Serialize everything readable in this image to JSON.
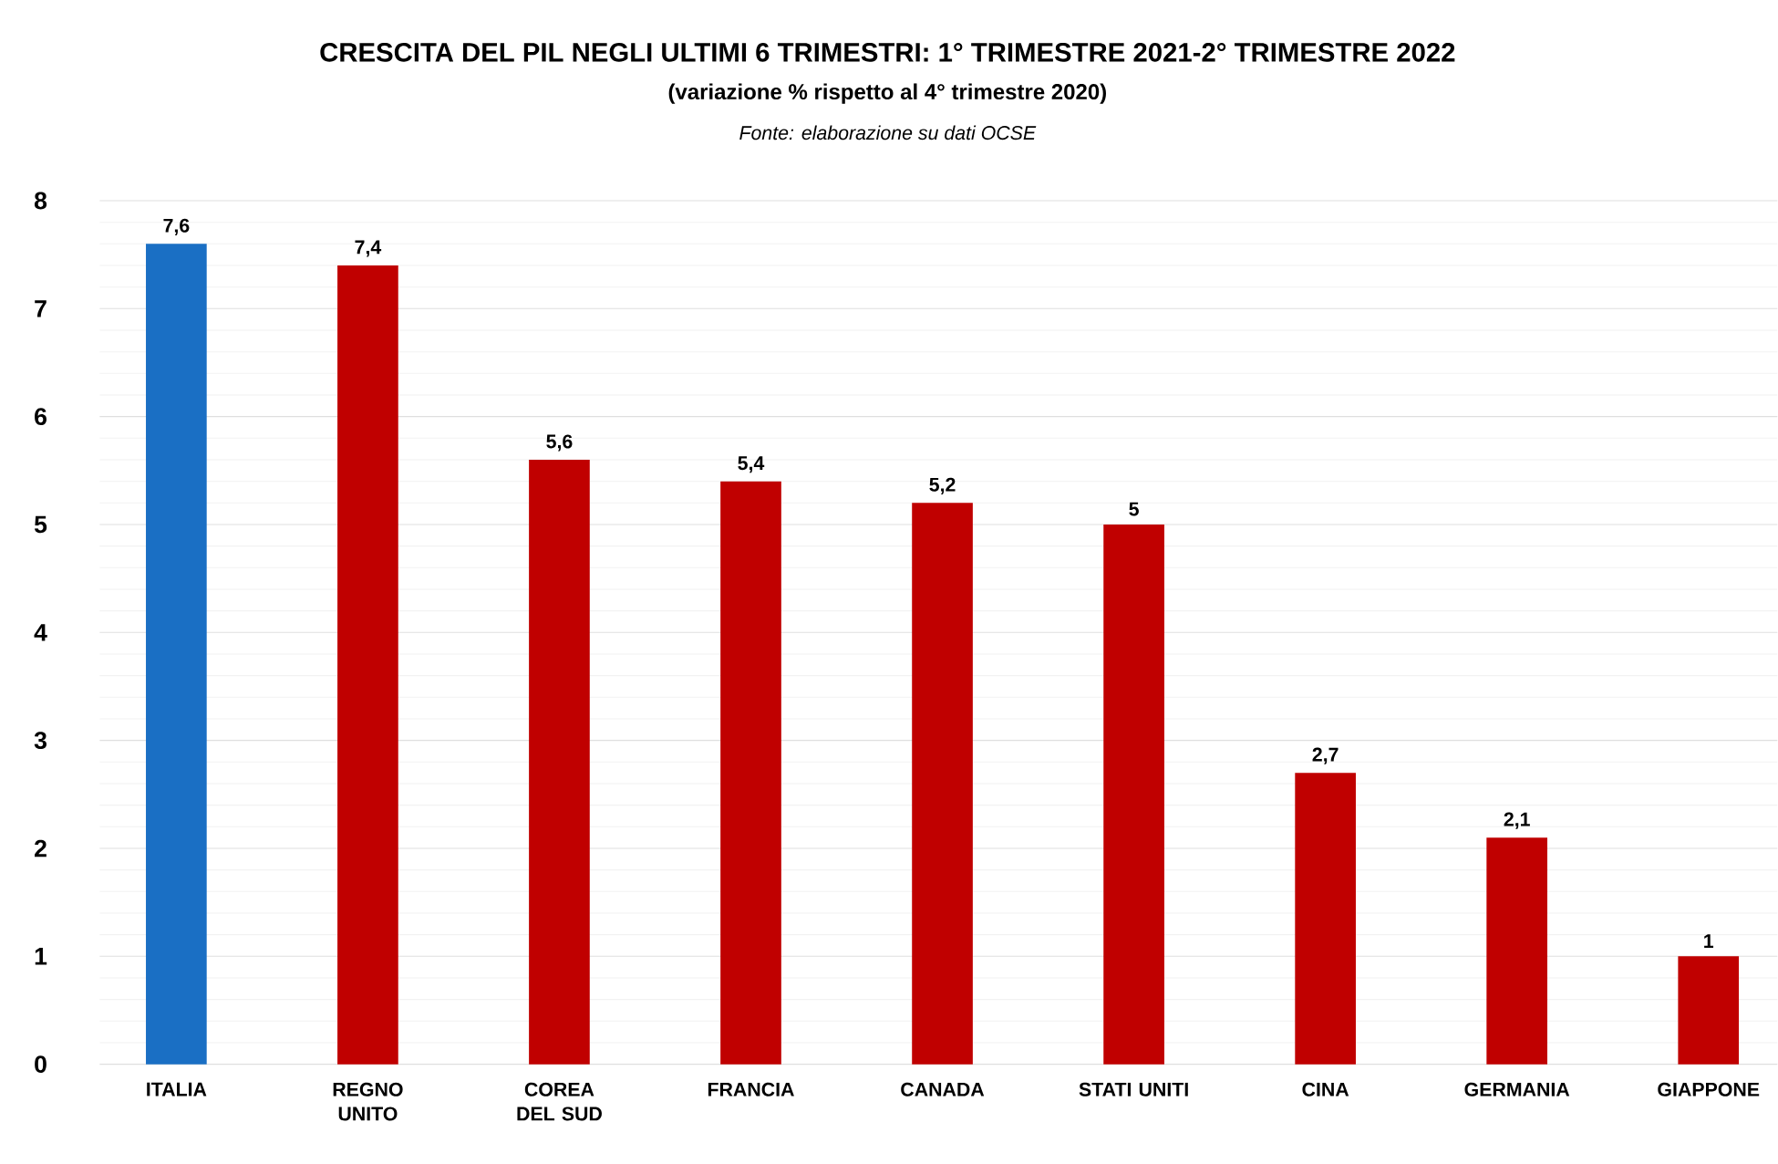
{
  "chart_data": {
    "type": "bar",
    "title": "CRESCITA DEL PIL NEGLI ULTIMI 6 TRIMESTRI: 1° TRIMESTRE 2021-2° TRIMESTRE 2022",
    "subtitle": "(variazione % rispetto al 4° trimestre 2020)",
    "annotations": [
      "Fonte: elaborazione su dati OCSE"
    ],
    "categories": [
      "ITALIA",
      "REGNO UNITO",
      "COREA DEL SUD",
      "FRANCIA",
      "CANADA",
      "STATI UNITI",
      "CINA",
      "GERMANIA",
      "GIAPPONE"
    ],
    "values": [
      7.6,
      7.4,
      5.6,
      5.4,
      5.2,
      5,
      2.7,
      2.1,
      1
    ],
    "value_labels": [
      "7,6",
      "7,4",
      "5,6",
      "5,4",
      "5,2",
      "5",
      "2,7",
      "2,1",
      "1"
    ],
    "colors": [
      "#1a6fc4",
      "#c00000",
      "#c00000",
      "#c00000",
      "#c00000",
      "#c00000",
      "#c00000",
      "#c00000",
      "#c00000"
    ],
    "ylim": [
      0,
      8
    ],
    "yticks": [
      0,
      1,
      2,
      3,
      4,
      5,
      6,
      7,
      8
    ],
    "grid": "y"
  }
}
